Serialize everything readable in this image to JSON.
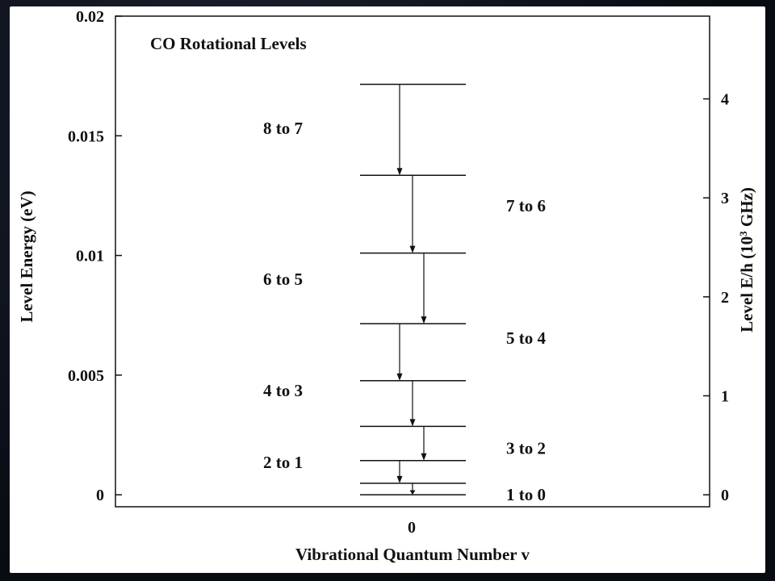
{
  "colors": {
    "background": "#0c0f1a",
    "panel": "#ffffff",
    "ink": "#111111"
  },
  "chart_data": {
    "type": "line",
    "title": "CO Rotational Levels",
    "xlabel": "Vibrational Quantum Number v",
    "ylabel": "Level Energy (eV)",
    "y2label": "Level E/h (10^3 GHz)",
    "x_ticks": [
      "0"
    ],
    "ylim": [
      -0.0005,
      0.02
    ],
    "y_ticks": [
      0,
      0.005,
      0.01,
      0.015,
      0.02
    ],
    "y_tick_labels": [
      "0",
      "0.005",
      "0.01",
      "0.015",
      "0.02"
    ],
    "y2lim": [
      -0.121,
      4.836
    ],
    "y2_ticks": [
      0,
      1,
      2,
      3,
      4
    ],
    "y2_tick_labels": [
      "0",
      "1",
      "2",
      "3",
      "4"
    ],
    "grid": false,
    "levels": [
      {
        "J": 0,
        "energy_eV": 0.0
      },
      {
        "J": 1,
        "energy_eV": 0.00048
      },
      {
        "J": 2,
        "energy_eV": 0.00143
      },
      {
        "J": 3,
        "energy_eV": 0.00286
      },
      {
        "J": 4,
        "energy_eV": 0.00477
      },
      {
        "J": 5,
        "energy_eV": 0.00715
      },
      {
        "J": 6,
        "energy_eV": 0.0101
      },
      {
        "J": 7,
        "energy_eV": 0.01335
      },
      {
        "J": 8,
        "energy_eV": 0.01715
      }
    ],
    "transitions": [
      {
        "label": "1 to 0",
        "from_eV": 0.00048,
        "to_eV": 0.0,
        "label_side": "right"
      },
      {
        "label": "2 to 1",
        "from_eV": 0.00143,
        "to_eV": 0.00048,
        "label_side": "left"
      },
      {
        "label": "3 to 2",
        "from_eV": 0.00286,
        "to_eV": 0.00143,
        "label_side": "right"
      },
      {
        "label": "4 to 3",
        "from_eV": 0.00477,
        "to_eV": 0.00286,
        "label_side": "left"
      },
      {
        "label": "5 to 4",
        "from_eV": 0.00715,
        "to_eV": 0.00477,
        "label_side": "right"
      },
      {
        "label": "6 to 5",
        "from_eV": 0.0101,
        "to_eV": 0.00715,
        "label_side": "left"
      },
      {
        "label": "7 to 6",
        "from_eV": 0.01335,
        "to_eV": 0.0101,
        "label_side": "right"
      },
      {
        "label": "8 to 7",
        "from_eV": 0.01715,
        "to_eV": 0.01335,
        "label_side": "left"
      }
    ]
  }
}
